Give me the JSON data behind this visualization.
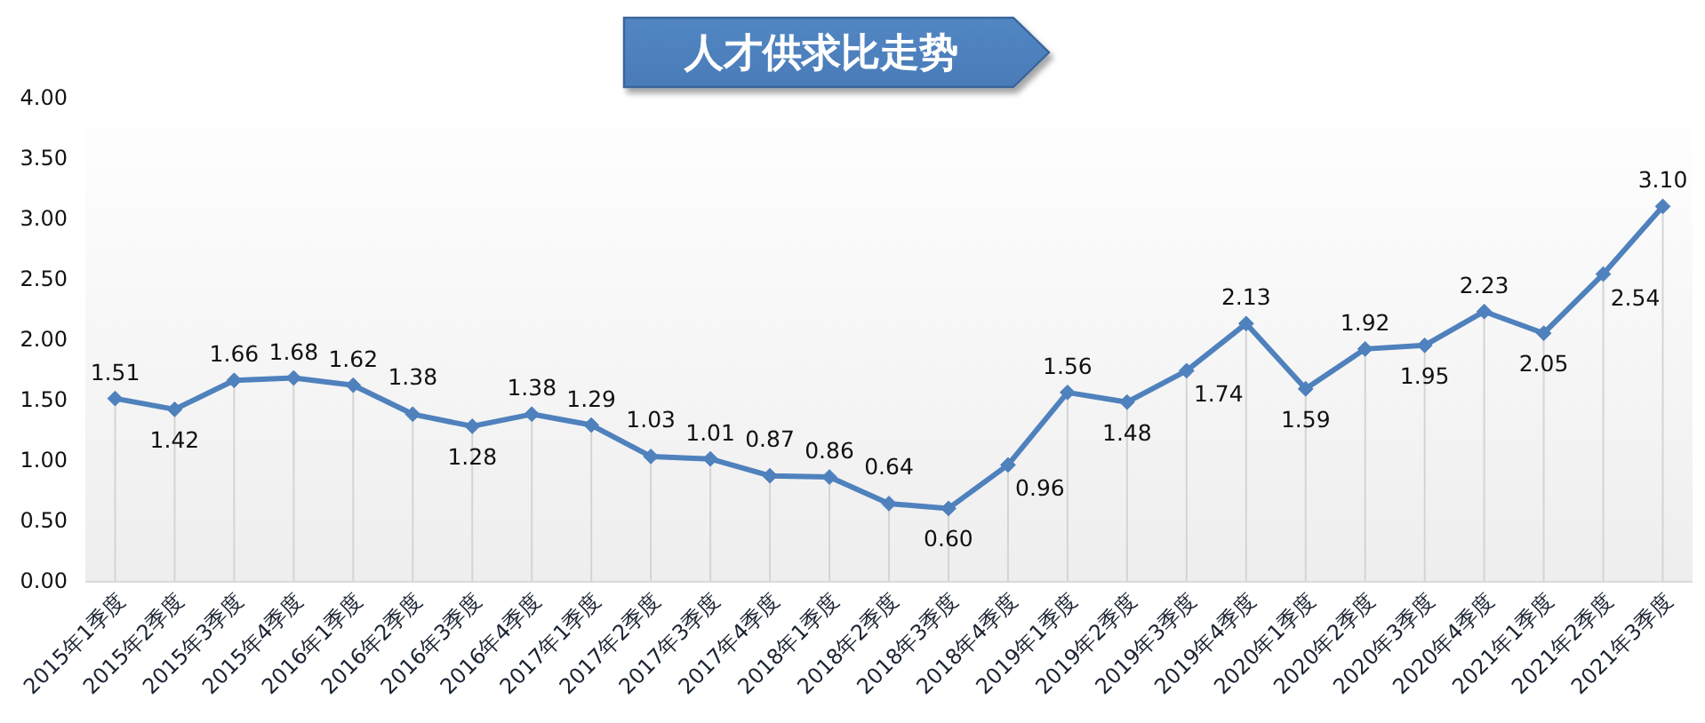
{
  "chart_data": {
    "type": "line",
    "title": "人才供求比走势",
    "categories": [
      "2015年1季度",
      "2015年2季度",
      "2015年3季度",
      "2015年4季度",
      "2016年1季度",
      "2016年2季度",
      "2016年3季度",
      "2016年4季度",
      "2017年1季度",
      "2017年2季度",
      "2017年3季度",
      "2017年4季度",
      "2018年1季度",
      "2018年2季度",
      "2018年3季度",
      "2018年4季度",
      "2019年1季度",
      "2019年2季度",
      "2019年3季度",
      "2019年4季度",
      "2020年1季度",
      "2020年2季度",
      "2020年3季度",
      "2020年4季度",
      "2021年1季度",
      "2021年2季度",
      "2021年3季度"
    ],
    "values": [
      1.51,
      1.42,
      1.66,
      1.68,
      1.62,
      1.38,
      1.28,
      1.38,
      1.29,
      1.03,
      1.01,
      0.87,
      0.86,
      0.64,
      0.6,
      0.96,
      1.56,
      1.48,
      1.74,
      2.13,
      1.59,
      1.92,
      1.95,
      2.23,
      2.05,
      2.54,
      3.1
    ],
    "value_labels": [
      "1.51",
      "1.42",
      "1.66",
      "1.68",
      "1.62",
      "1.38",
      "1.28",
      "1.38",
      "1.29",
      "1.03",
      "1.01",
      "0.87",
      "0.86",
      "0.64",
      "0.60",
      "0.96",
      "1.56",
      "1.48",
      "1.74",
      "2.13",
      "1.59",
      "1.92",
      "1.95",
      "2.23",
      "2.05",
      "2.54",
      "3.10"
    ],
    "color": "#4f81bd",
    "marker": "diamond",
    "line_style": "solid",
    "ylim": [
      0,
      4
    ],
    "yticks": [
      {
        "value": 0,
        "label": "0.00"
      },
      {
        "value": 0.5,
        "label": "0.50"
      },
      {
        "value": 1,
        "label": "1.00"
      },
      {
        "value": 1.5,
        "label": "1.50"
      },
      {
        "value": 2,
        "label": "2.00"
      },
      {
        "value": 2.5,
        "label": "2.50"
      },
      {
        "value": 3,
        "label": "3.00"
      },
      {
        "value": 3.5,
        "label": "3.50"
      },
      {
        "value": 4,
        "label": "4.00"
      }
    ]
  }
}
